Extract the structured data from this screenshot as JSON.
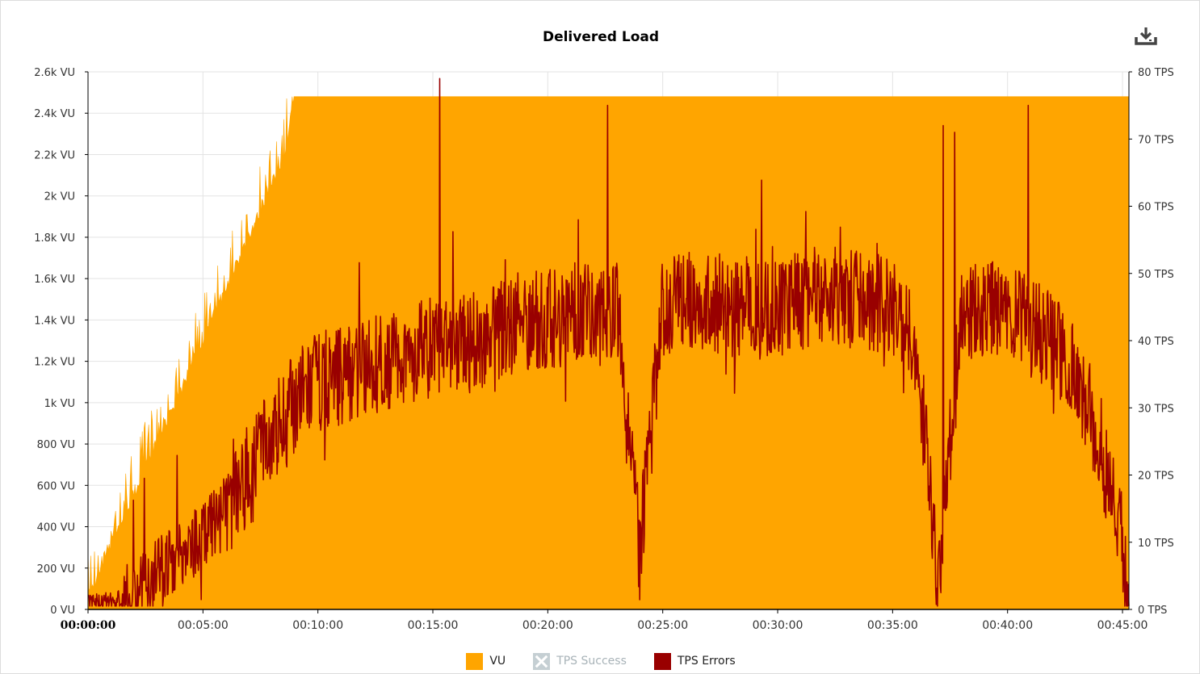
{
  "chart_data": {
    "type": "area",
    "title": "Delivered Load",
    "x_unit": "elapsed time (hh:mm:ss)",
    "xlim": [
      "00:00:00",
      "00:45:17"
    ],
    "x_ticks": [
      "00:00:00",
      "00:05:00",
      "00:10:00",
      "00:15:00",
      "00:20:00",
      "00:25:00",
      "00:30:00",
      "00:35:00",
      "00:40:00",
      "00:45:00"
    ],
    "y_left": {
      "ticks": [
        "0 VU",
        "200 VU",
        "400 VU",
        "600 VU",
        "800 VU",
        "1k VU",
        "1.2k VU",
        "1.4k VU",
        "1.6k VU",
        "1.8k VU",
        "2k VU",
        "2.2k VU",
        "2.4k VU",
        "2.6k VU"
      ],
      "range": [
        0,
        2600
      ]
    },
    "y_right": {
      "ticks": [
        "0 TPS",
        "10 TPS",
        "20 TPS",
        "30 TPS",
        "40 TPS",
        "50 TPS",
        "60 TPS",
        "70 TPS",
        "80 TPS"
      ],
      "range": [
        0,
        80
      ]
    },
    "grid": true,
    "legend_position": "bottom-center",
    "series": [
      {
        "name": "VU",
        "axis": "left",
        "type": "area",
        "color": "#FFA500",
        "visible": true,
        "points_min_vu": [
          [
            0,
            40
          ],
          [
            0.5,
            140
          ],
          [
            1,
            290
          ],
          [
            1.5,
            410
          ],
          [
            2,
            530
          ],
          [
            2.5,
            660
          ],
          [
            3,
            780
          ],
          [
            3.5,
            900
          ],
          [
            4,
            1020
          ],
          [
            4.5,
            1150
          ],
          [
            5,
            1270
          ],
          [
            5.5,
            1400
          ],
          [
            6,
            1520
          ],
          [
            6.5,
            1650
          ],
          [
            7,
            1780
          ],
          [
            7.5,
            1900
          ],
          [
            8,
            2030
          ],
          [
            8.5,
            2140
          ],
          [
            9,
            2480
          ],
          [
            45.2,
            2480
          ]
        ]
      },
      {
        "name": "TPS Success",
        "axis": "right",
        "type": "line",
        "color": "#a8b3b8",
        "visible": false
      },
      {
        "name": "TPS Errors",
        "axis": "right",
        "type": "line",
        "color": "#990000",
        "visible": true,
        "points_min_tps": [
          [
            0,
            1
          ],
          [
            1,
            1
          ],
          [
            2,
            2
          ],
          [
            3,
            6
          ],
          [
            4,
            8
          ],
          [
            5,
            11
          ],
          [
            6,
            15
          ],
          [
            7,
            20
          ],
          [
            8,
            26
          ],
          [
            9,
            31
          ],
          [
            10,
            34
          ],
          [
            11,
            35
          ],
          [
            12,
            36
          ],
          [
            13,
            37
          ],
          [
            14,
            38
          ],
          [
            15,
            39
          ],
          [
            16,
            39
          ],
          [
            17,
            40
          ],
          [
            18,
            42
          ],
          [
            19,
            43
          ],
          [
            20,
            43
          ],
          [
            21,
            44
          ],
          [
            22,
            45
          ],
          [
            23,
            45
          ],
          [
            24,
            8
          ],
          [
            25,
            45
          ],
          [
            26,
            46
          ],
          [
            27,
            46
          ],
          [
            28,
            45
          ],
          [
            29,
            45
          ],
          [
            30,
            45
          ],
          [
            31,
            46
          ],
          [
            32,
            47
          ],
          [
            33,
            46
          ],
          [
            34,
            46
          ],
          [
            35,
            45
          ],
          [
            36,
            40
          ],
          [
            37,
            4
          ],
          [
            38,
            44
          ],
          [
            39,
            45
          ],
          [
            40,
            44
          ],
          [
            41,
            42
          ],
          [
            42,
            40
          ],
          [
            43,
            35
          ],
          [
            44,
            25
          ],
          [
            45,
            10
          ],
          [
            45.2,
            1
          ]
        ],
        "peaks_tps": [
          [
            15.3,
            79
          ],
          [
            22.6,
            75
          ],
          [
            40.9,
            75
          ],
          [
            37.2,
            72
          ],
          [
            37.7,
            71
          ]
        ]
      }
    ]
  },
  "toolbar": {
    "download_icon": "download-icon"
  },
  "legend": [
    {
      "label": "VU",
      "color": "#FFA500",
      "enabled": true
    },
    {
      "label": "TPS Success",
      "color": "#c5cfd3",
      "enabled": false
    },
    {
      "label": "TPS Errors",
      "color": "#990000",
      "enabled": true
    }
  ]
}
